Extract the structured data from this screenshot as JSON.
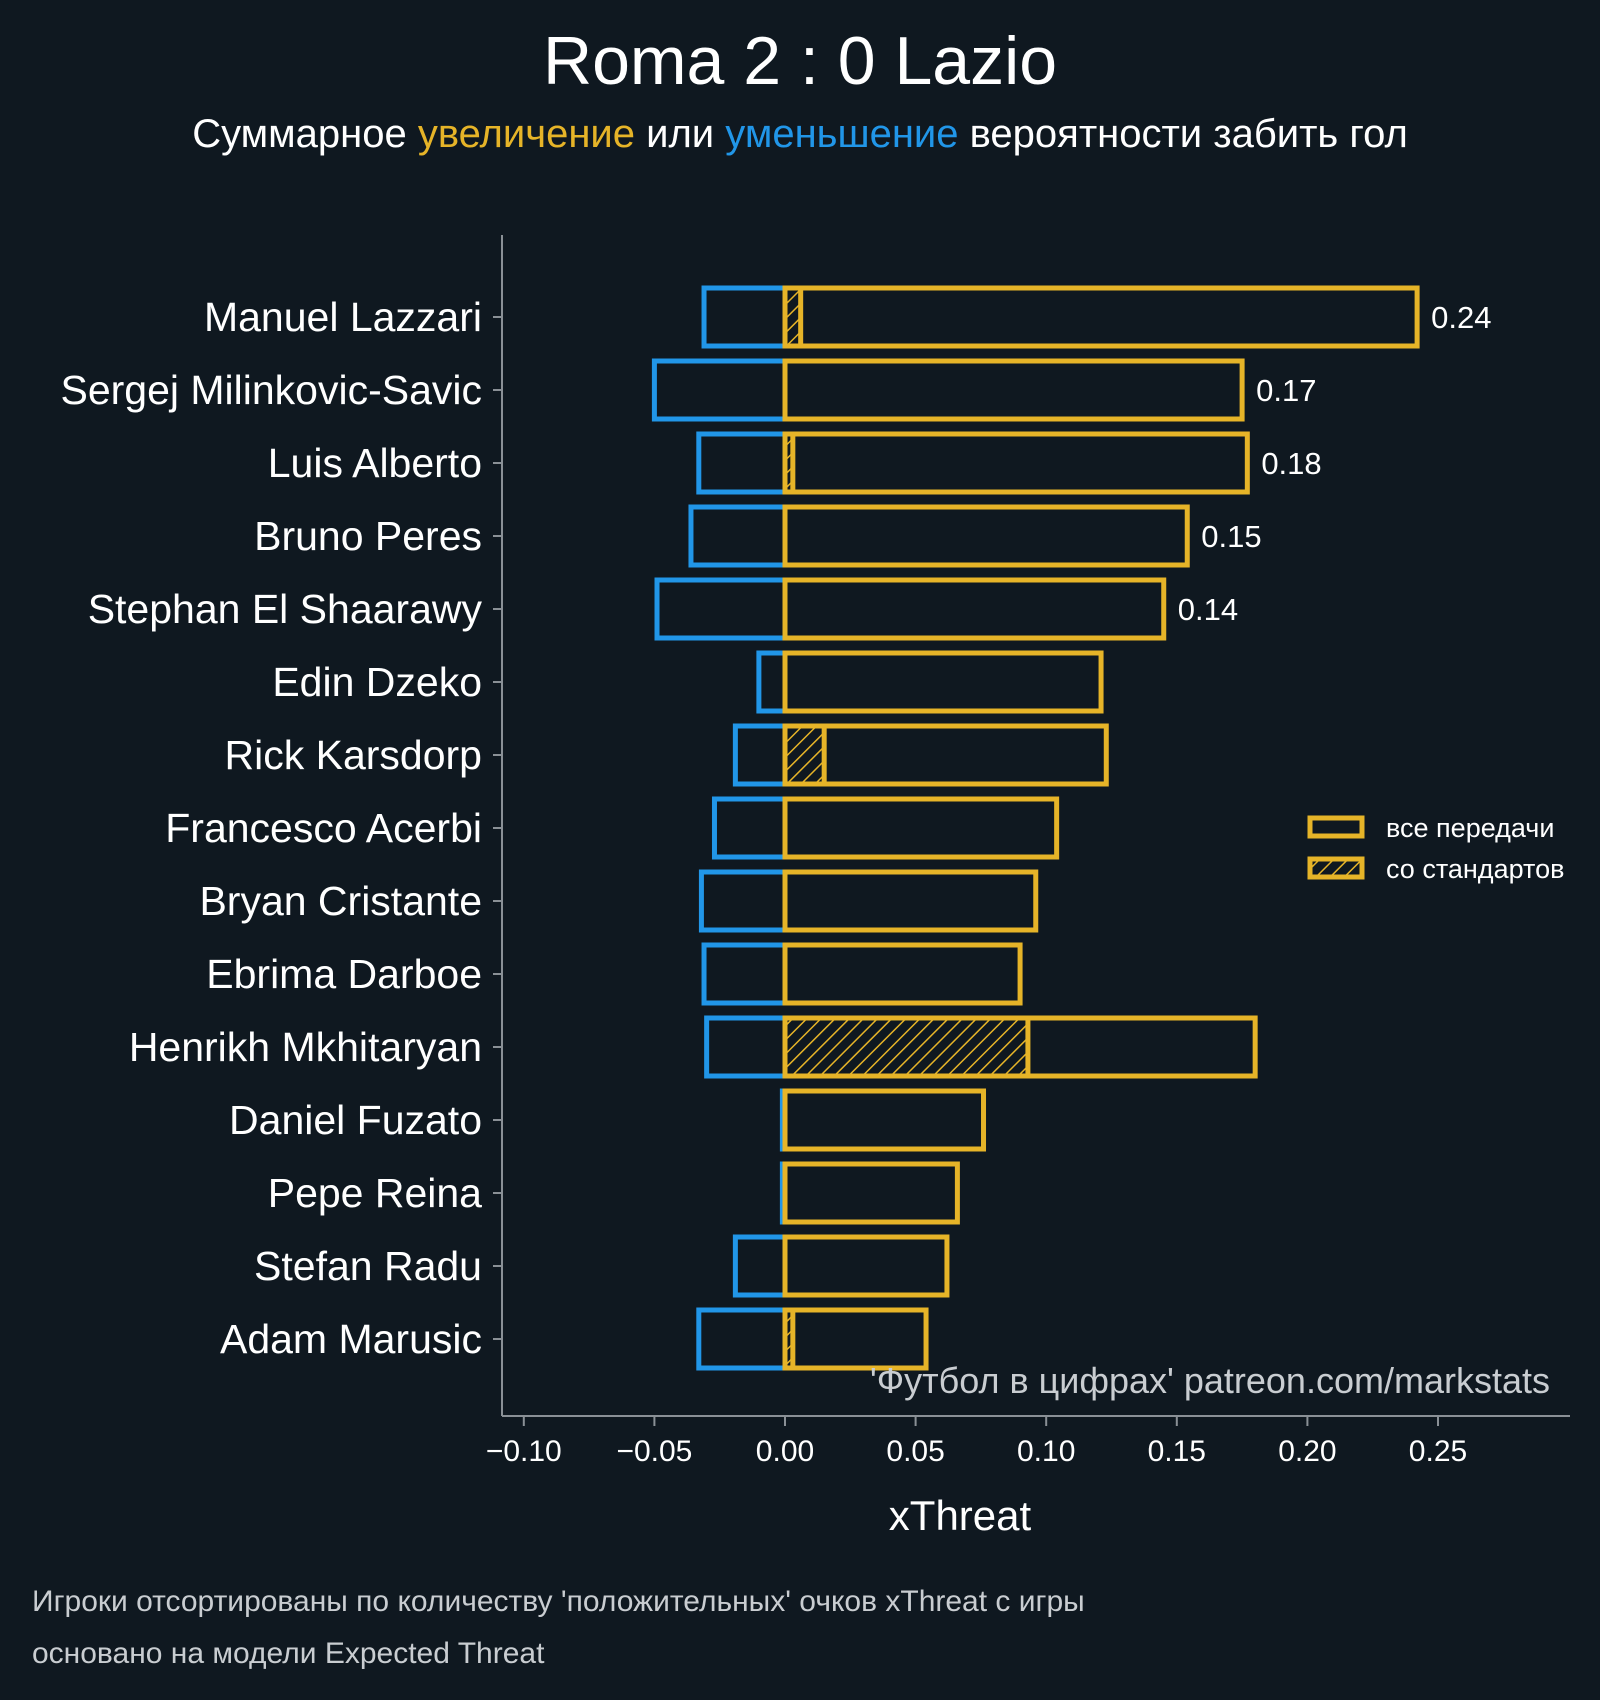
{
  "header": {
    "title": "Roma 2 : 0 Lazio",
    "subtitle_prefix": "Суммарное ",
    "subtitle_increase": "увеличение",
    "subtitle_middle": " или ",
    "subtitle_decrease": "уменьшение",
    "subtitle_suffix": " вероятности забить гол"
  },
  "footer": {
    "line1": "Игроки отсортированы по количеству 'положительных' очков xThreat с игры",
    "line2": "основано на модели Expected Threat"
  },
  "colors": {
    "background": "#0f1820",
    "positive": "#e6b428",
    "negative": "#2196e8",
    "axis": "#8a9096",
    "text": "#ffffff"
  },
  "chart_data": {
    "type": "bar",
    "orientation": "horizontal",
    "xlabel": "xThreat",
    "ylabel": "",
    "xlim": [
      -0.1,
      0.3
    ],
    "xticks": [
      -0.1,
      -0.05,
      0.0,
      0.05,
      0.1,
      0.15,
      0.2,
      0.25
    ],
    "xtick_labels": [
      "−0.10",
      "−0.05",
      "0.00",
      "0.05",
      "0.10",
      "0.15",
      "0.20",
      "0.25"
    ],
    "watermark": "'Футбол в цифрах' patreon.com/markstats",
    "legend": {
      "position": "right",
      "items": [
        {
          "label": "все передачи",
          "style": "outline"
        },
        {
          "label": "со стандартов",
          "style": "hatched"
        }
      ]
    },
    "categories": [
      "Manuel Lazzari",
      "Sergej Milinkovic-Savic",
      "Luis Alberto",
      "Bruno Peres",
      "Stephan El Shaarawy",
      "Edin Dzeko",
      "Rick Karsdorp",
      "Francesco Acerbi",
      "Bryan Cristante",
      "Ebrima Darboe",
      "Henrikh Mkhitaryan",
      "Daniel Fuzato",
      "Pepe Reina",
      "Stefan Radu",
      "Adam Marusic"
    ],
    "series": [
      {
        "name": "positive (все передачи)",
        "values": [
          0.242,
          0.175,
          0.177,
          0.154,
          0.145,
          0.121,
          0.123,
          0.104,
          0.096,
          0.09,
          0.18,
          0.076,
          0.066,
          0.062,
          0.054
        ]
      },
      {
        "name": "negative",
        "values": [
          -0.031,
          -0.05,
          -0.033,
          -0.036,
          -0.049,
          -0.01,
          -0.019,
          -0.027,
          -0.032,
          -0.031,
          -0.03,
          -0.001,
          -0.001,
          -0.019,
          -0.033
        ]
      },
      {
        "name": "со стандартов",
        "values": [
          0.006,
          0.0,
          0.003,
          0.0,
          0.0,
          0.0,
          0.015,
          0.0,
          0.0,
          0.0,
          0.093,
          0.0,
          0.0,
          0.0,
          0.003
        ]
      }
    ],
    "value_labels": [
      "0.24",
      "0.17",
      "0.18",
      "0.15",
      "0.14",
      "",
      "",
      "",
      "",
      "",
      "",
      "",
      "",
      "",
      ""
    ]
  }
}
